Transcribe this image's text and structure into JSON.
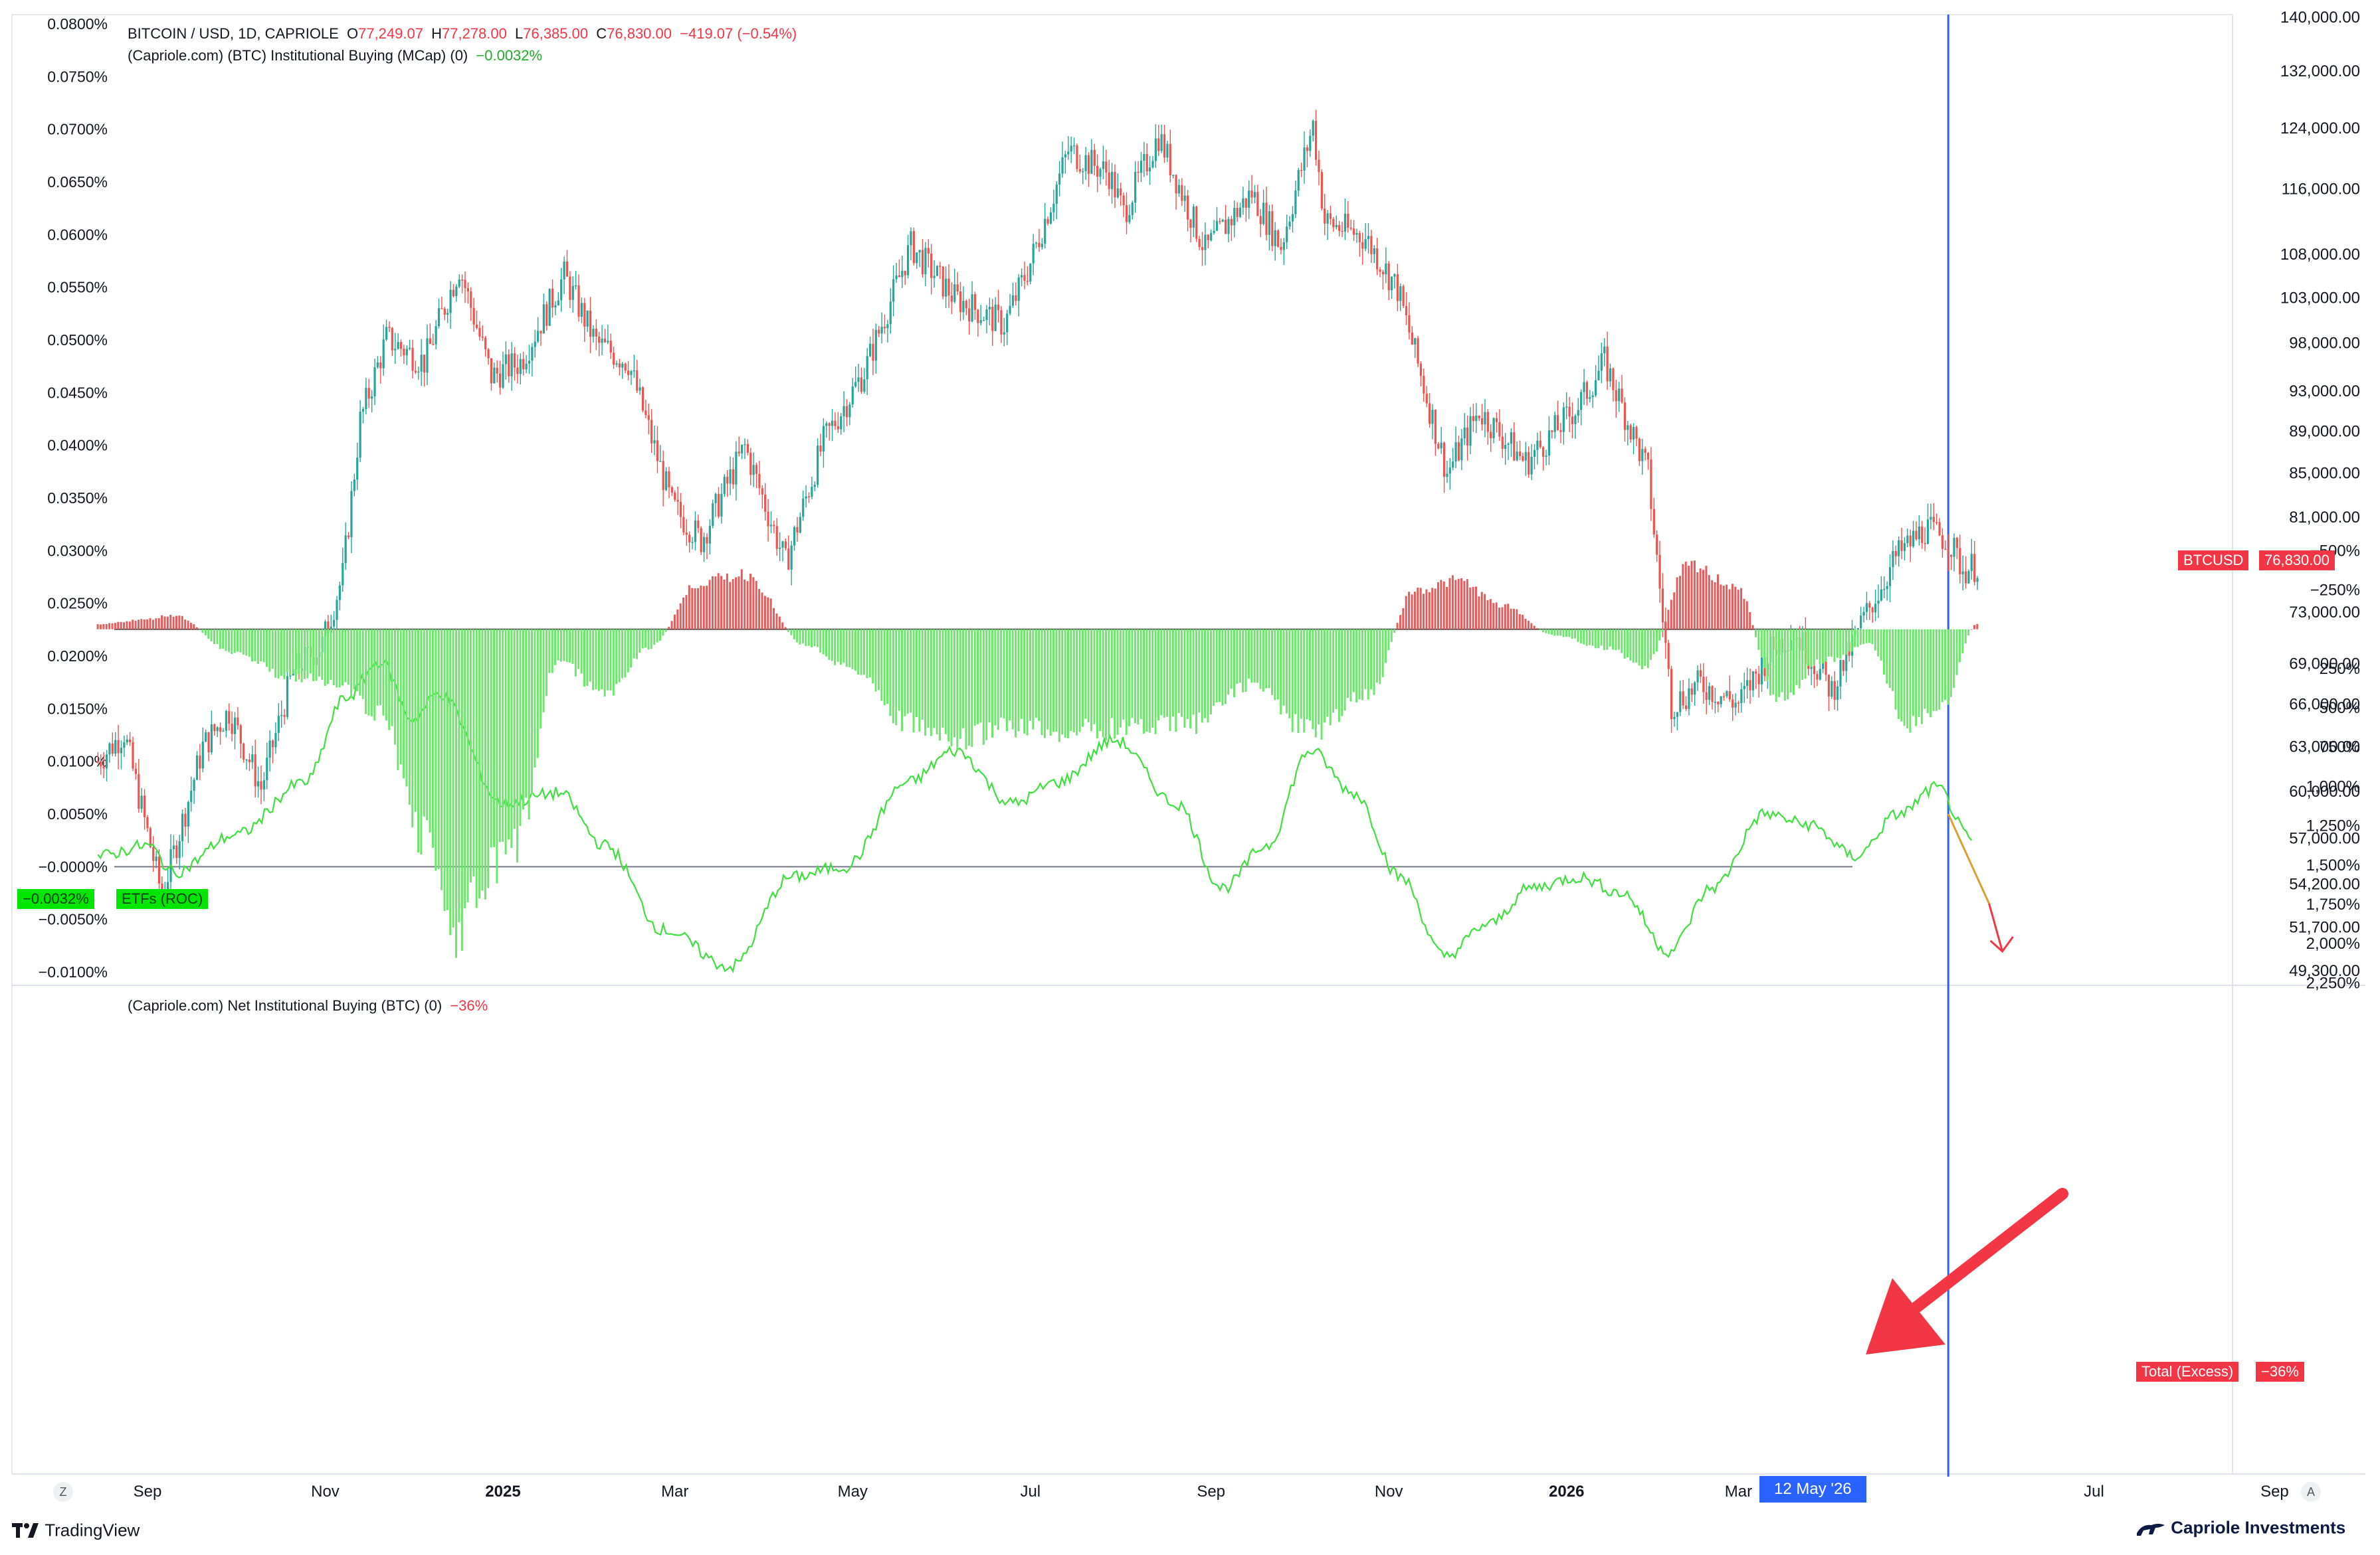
{
  "header": {
    "symbol": "BITCOIN / USD, 1D, CAPRIOLE",
    "o_label": "O",
    "o_value": "77,249.07",
    "h_label": "H",
    "h_value": "77,278.00",
    "l_label": "L",
    "l_value": "76,385.00",
    "c_label": "C",
    "c_value": "76,830.00",
    "change": "−419.07 (−0.54%)",
    "indicator1": "(Capriole.com) (BTC) Institutional Buying (MCap) (0)",
    "indicator1_value": "−0.0032%",
    "indicator2": "(Capriole.com) Net Institutional Buying (BTC) (0)",
    "indicator2_value": "−36%"
  },
  "tags": {
    "left_value": "−0.0032%",
    "left_name": "ETFs (ROC)",
    "price_name": "BTCUSD",
    "price_value": "76,830.00",
    "total_name": "Total (Excess)",
    "total_value": "−36%",
    "cursor_date": "12 May '26"
  },
  "footer": {
    "tradingview": "TradingView",
    "brand": "Capriole Investments",
    "z_button": "Z",
    "a_button": "A"
  },
  "colors": {
    "up": "#26a69a",
    "down": "#ef5350",
    "roc_line": "#3ee03e",
    "bar_pos": "#6ee66e",
    "bar_neg": "#e35d5d",
    "cursor": "#2962ff",
    "tag_red": "#f23645",
    "tag_green": "#00e600",
    "arrow": "#f23645"
  },
  "chart_data": [
    {
      "type": "candlestick",
      "series_name": "BITCOIN / USD",
      "scale": "log",
      "y_ticks": [
        "140,000.00",
        "132,000.00",
        "124,000.00",
        "116,000.00",
        "108,000.00",
        "103,000.00",
        "98,000.00",
        "93,000.00",
        "89,000.00",
        "85,000.00",
        "81,000.00",
        "73,000.00",
        "69,000.00",
        "66,000.00",
        "63,000.00",
        "60,000.00",
        "57,000.00",
        "54,200.00",
        "51,700.00",
        "49,300.00"
      ],
      "ylim": [
        49300,
        140000
      ],
      "x_ticks": [
        "Sep",
        "Nov",
        "2025",
        "Mar",
        "May",
        "Jul",
        "Sep",
        "Nov",
        "2026",
        "Mar",
        "12 May '26",
        "Jul",
        "Sep"
      ],
      "path": [
        [
          "2024-08-15",
          62000
        ],
        [
          "2024-08-24",
          64000
        ],
        [
          "2024-09-06",
          53500
        ],
        [
          "2024-09-20",
          63000
        ],
        [
          "2024-09-29",
          65500
        ],
        [
          "2024-10-10",
          60200
        ],
        [
          "2024-10-21",
          68500
        ],
        [
          "2024-10-31",
          70500
        ],
        [
          "2024-11-07",
          76000
        ],
        [
          "2024-11-13",
          90000
        ],
        [
          "2024-11-22",
          98500
        ],
        [
          "2024-12-05",
          96000
        ],
        [
          "2024-12-17",
          106500
        ],
        [
          "2024-12-28",
          94500
        ],
        [
          "2025-01-07",
          96000
        ],
        [
          "2025-01-22",
          105500
        ],
        [
          "2025-02-02",
          98000
        ],
        [
          "2025-02-13",
          96000
        ],
        [
          "2025-02-28",
          82000
        ],
        [
          "2025-03-10",
          79000
        ],
        [
          "2025-03-25",
          87500
        ],
        [
          "2025-04-08",
          77000
        ],
        [
          "2025-04-21",
          88000
        ],
        [
          "2025-05-05",
          95000
        ],
        [
          "2025-05-21",
          109000
        ],
        [
          "2025-06-05",
          103000
        ],
        [
          "2025-06-22",
          100000
        ],
        [
          "2025-07-01",
          107000
        ],
        [
          "2025-07-14",
          121000
        ],
        [
          "2025-07-28",
          118000
        ],
        [
          "2025-08-02",
          113000
        ],
        [
          "2025-08-14",
          123000
        ],
        [
          "2025-08-30",
          108500
        ],
        [
          "2025-09-15",
          115500
        ],
        [
          "2025-09-25",
          109000
        ],
        [
          "2025-10-06",
          124500
        ],
        [
          "2025-10-10",
          112000
        ],
        [
          "2025-10-24",
          110000
        ],
        [
          "2025-11-04",
          104000
        ],
        [
          "2025-11-21",
          85000
        ],
        [
          "2025-12-02",
          91000
        ],
        [
          "2025-12-18",
          86000
        ],
        [
          "2026-01-05",
          91500
        ],
        [
          "2026-01-14",
          96000
        ],
        [
          "2026-01-29",
          85000
        ],
        [
          "2026-02-06",
          66000
        ],
        [
          "2026-02-16",
          67500
        ],
        [
          "2026-03-01",
          66000
        ],
        [
          "2026-03-12",
          70000
        ],
        [
          "2026-03-20",
          71500
        ],
        [
          "2026-04-02",
          67000
        ],
        [
          "2026-04-12",
          72000
        ],
        [
          "2026-04-24",
          77500
        ],
        [
          "2026-05-04",
          80000
        ],
        [
          "2026-05-12",
          79000
        ],
        [
          "2026-05-17",
          76500
        ],
        [
          "2026-05-22",
          76830
        ]
      ],
      "last_value": 76830
    },
    {
      "type": "line",
      "series_name": "ETFs (ROC)",
      "y_ticks": [
        "0.0800%",
        "0.0750%",
        "0.0700%",
        "0.0650%",
        "0.0600%",
        "0.0550%",
        "0.0500%",
        "0.0450%",
        "0.0400%",
        "0.0350%",
        "0.0300%",
        "0.0250%",
        "0.0200%",
        "0.0150%",
        "0.0100%",
        "0.0050%",
        "−0.0000%",
        "−0.0050%",
        "−0.0100%"
      ],
      "ylim": [
        -0.01,
        0.08
      ],
      "x": [
        "2024-08-15",
        "2024-09-01",
        "2024-09-10",
        "2024-10-01",
        "2024-10-25",
        "2024-11-08",
        "2024-11-20",
        "2024-12-01",
        "2024-12-10",
        "2025-01-01",
        "2025-01-20",
        "2025-02-05",
        "2025-02-25",
        "2025-03-20",
        "2025-04-10",
        "2025-04-28",
        "2025-05-20",
        "2025-06-05",
        "2025-06-25",
        "2025-07-10",
        "2025-07-30",
        "2025-08-20",
        "2025-09-05",
        "2025-09-20",
        "2025-10-05",
        "2025-10-20",
        "2025-11-05",
        "2025-11-20",
        "2025-12-05",
        "2025-12-20",
        "2026-01-05",
        "2026-01-20",
        "2026-02-05",
        "2026-02-20",
        "2026-03-10",
        "2026-03-25",
        "2026-04-10",
        "2026-04-25",
        "2026-05-08",
        "2026-05-20"
      ],
      "values": [
        0.001,
        0.002,
        -0.0005,
        0.003,
        0.008,
        0.016,
        0.0195,
        0.014,
        0.0165,
        0.006,
        0.007,
        0.002,
        -0.006,
        -0.0095,
        -0.001,
        0.0,
        0.008,
        0.011,
        0.006,
        0.008,
        0.012,
        0.006,
        -0.002,
        0.002,
        0.011,
        0.007,
        -0.001,
        -0.0085,
        -0.0055,
        -0.002,
        -0.001,
        -0.0025,
        -0.008,
        -0.002,
        0.005,
        0.004,
        0.001,
        0.005,
        0.0075,
        0.0025
      ],
      "projection": [
        [
          "2026-05-12",
          0.005
        ],
        [
          "2026-05-26",
          -0.0035
        ]
      ]
    },
    {
      "type": "bar",
      "series_name": "Total (Excess)",
      "y_ticks": [
        "2,250%",
        "2,000%",
        "1,750%",
        "1,500%",
        "1,250%",
        "1,000%",
        "750%",
        "500%",
        "250%",
        "−250%",
        "−500%"
      ],
      "ylim": [
        -700,
        2350
      ],
      "x": [
        "2024-08-15",
        "2024-08-30",
        "2024-09-10",
        "2024-10-01",
        "2024-10-20",
        "2024-11-05",
        "2024-11-20",
        "2024-12-05",
        "2024-12-15",
        "2025-01-05",
        "2025-01-20",
        "2025-02-05",
        "2025-02-20",
        "2025-03-10",
        "2025-03-25",
        "2025-04-15",
        "2025-05-01",
        "2025-05-20",
        "2025-06-05",
        "2025-06-25",
        "2025-07-15",
        "2025-08-05",
        "2025-08-25",
        "2025-09-15",
        "2025-10-05",
        "2025-10-25",
        "2025-11-10",
        "2025-11-25",
        "2025-12-10",
        "2025-12-28",
        "2026-01-15",
        "2026-01-28",
        "2026-02-12",
        "2026-02-28",
        "2026-03-15",
        "2026-03-30",
        "2026-04-15",
        "2026-04-28",
        "2026-05-10",
        "2026-05-22"
      ],
      "values": [
        -30,
        -60,
        -90,
        150,
        300,
        350,
        550,
        1300,
        1900,
        1400,
        200,
        420,
        120,
        -300,
        -350,
        100,
        250,
        600,
        720,
        620,
        650,
        620,
        600,
        350,
        650,
        420,
        -250,
        -310,
        -150,
        40,
        120,
        240,
        -400,
        -280,
        450,
        200,
        100,
        600,
        500,
        -36
      ],
      "last_value": -36
    }
  ]
}
